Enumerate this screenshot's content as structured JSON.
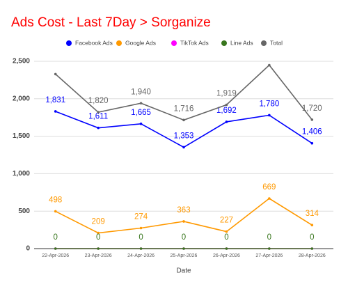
{
  "chart_data": {
    "type": "line",
    "title": "Ads Cost - Last 7Day > Sorganize",
    "x_label": "Date",
    "categories": [
      "22-Apr-2026",
      "23-Apr-2026",
      "24-Apr-2026",
      "25-Apr-2026",
      "26-Apr-2026",
      "27-Apr-2026",
      "28-Apr-2026"
    ],
    "series": [
      {
        "name": "Facebook Ads",
        "color": "#0000ff",
        "values": [
          1831,
          1611,
          1665,
          1353,
          1692,
          1780,
          1406
        ],
        "value_labels": [
          "1,831",
          "1,611",
          "1,665",
          "1,353",
          "1,692",
          "1,780",
          "1,406"
        ],
        "data_labels": true
      },
      {
        "name": "Google Ads",
        "color": "#ff9900",
        "values": [
          498,
          209,
          274,
          363,
          227,
          669,
          314
        ],
        "data_labels": true
      },
      {
        "name": "TikTok Ads",
        "color": "#ff00ff",
        "values": [
          0,
          0,
          0,
          0,
          0,
          0,
          0
        ],
        "data_labels": false
      },
      {
        "name": "Line Ads",
        "color": "#38761d",
        "values": [
          0,
          0,
          0,
          0,
          0,
          0,
          0
        ],
        "data_labels": true
      },
      {
        "name": "Total",
        "color": "#666666",
        "values": [
          2329,
          1820,
          1940,
          1716,
          1919,
          2449,
          1720
        ],
        "value_labels": [
          null,
          "1,820",
          "1,940",
          "1,716",
          "1,919",
          null,
          "1,720"
        ],
        "data_labels": true
      }
    ],
    "ylim": [
      0,
      2500
    ],
    "yticks": [
      0,
      500,
      {
        "value": 1000,
        "label": "1,000"
      },
      {
        "value": 1500,
        "label": "1,500"
      },
      {
        "value": 2000,
        "label": "2,000"
      },
      {
        "value": 2500,
        "label": "2,500"
      }
    ],
    "grid": true,
    "legend": "top"
  }
}
